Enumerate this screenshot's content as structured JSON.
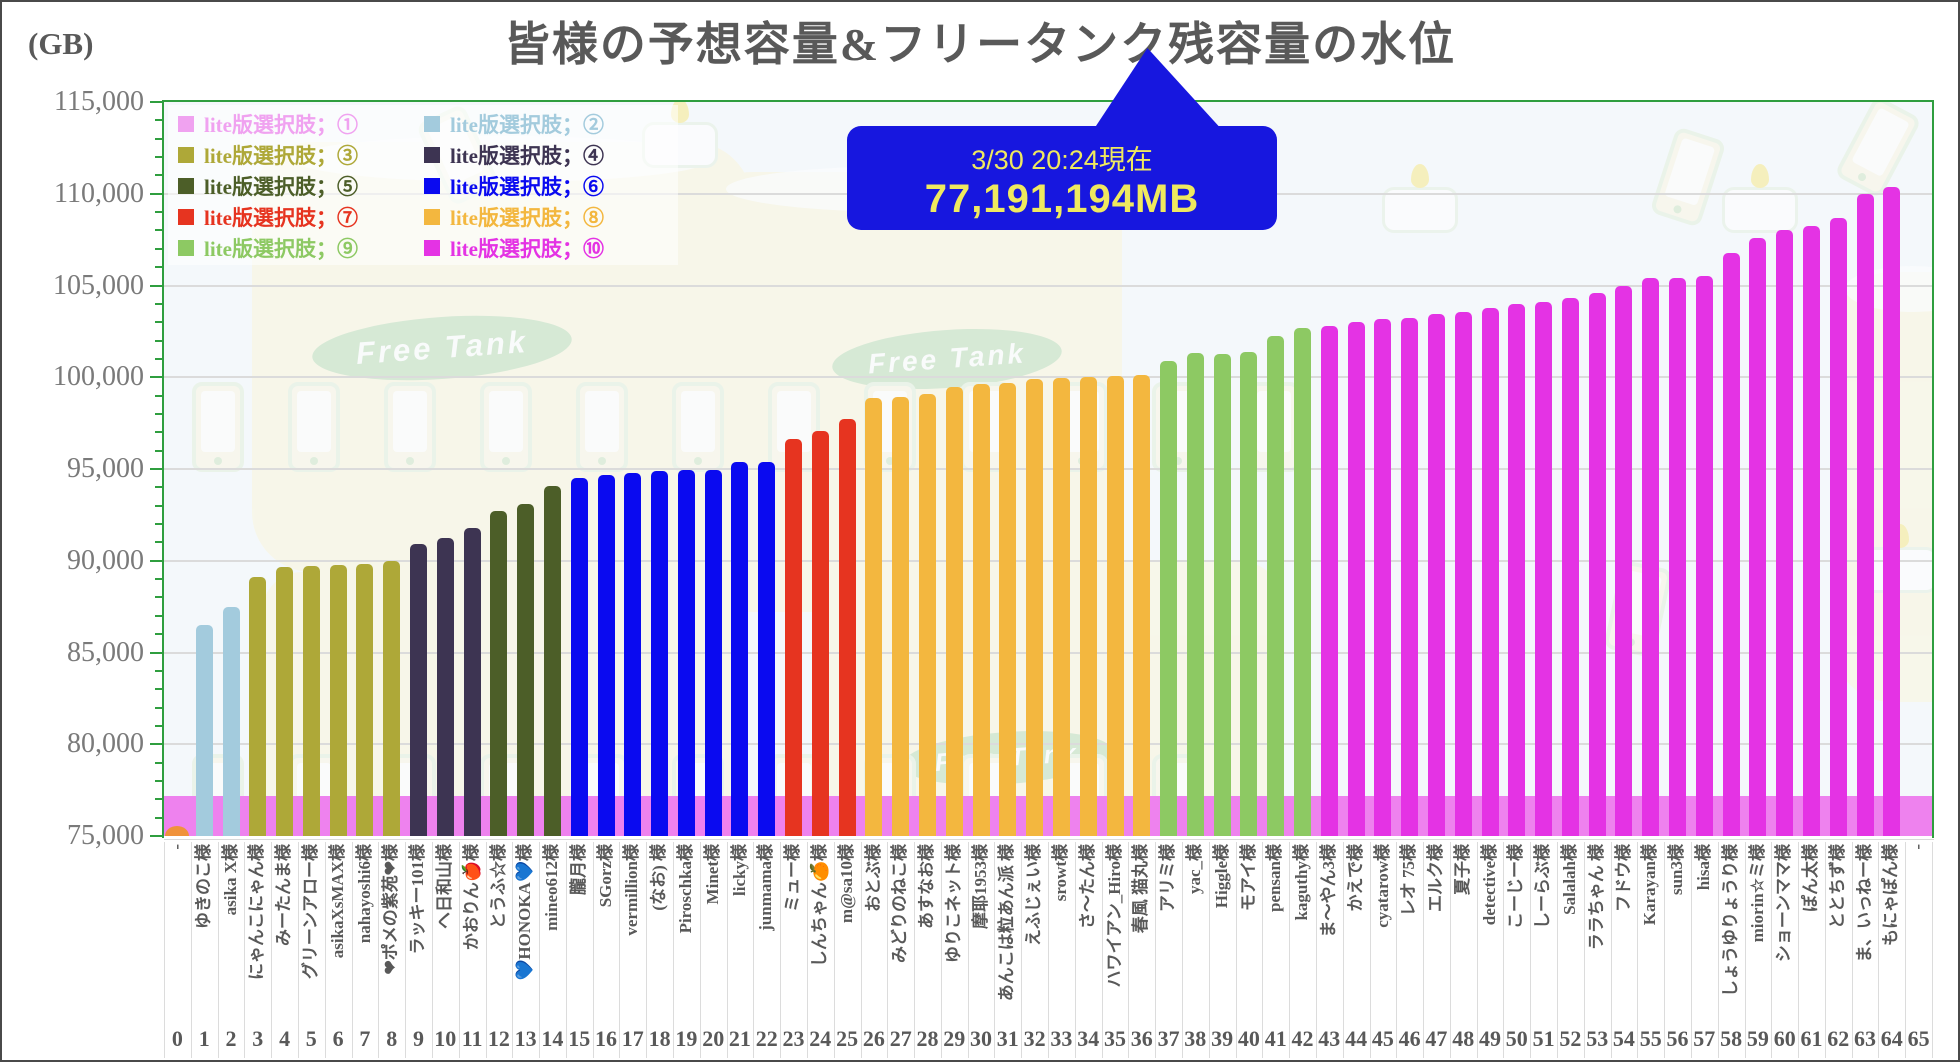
{
  "title": "皆様の予想容量&フリータンク残容量の水位",
  "y_axis_unit": "(GB)",
  "callout": {
    "line1": "3/30 20:24現在",
    "line2": "77,191,194MB"
  },
  "watermark": {
    "badge_text": "Free Tank"
  },
  "legend": {
    "entries": [
      {
        "label": "lite版選択肢；①",
        "choice": 1
      },
      {
        "label": "lite版選択肢；②",
        "choice": 2
      },
      {
        "label": "lite版選択肢；③",
        "choice": 3
      },
      {
        "label": "lite版選択肢；④",
        "choice": 4
      },
      {
        "label": "lite版選択肢；⑤",
        "choice": 5
      },
      {
        "label": "lite版選択肢；⑥",
        "choice": 6
      },
      {
        "label": "lite版選択肢；⑦",
        "choice": 7
      },
      {
        "label": "lite版選択肢；⑧",
        "choice": 8
      },
      {
        "label": "lite版選択肢；⑨",
        "choice": 9
      },
      {
        "label": "lite版選択肢；⑩",
        "choice": 10
      }
    ]
  },
  "chart_data": {
    "type": "bar",
    "title": "皆様の予想容量&フリータンク残容量の水位",
    "ylabel": "(GB)",
    "ylim": [
      75000,
      115000
    ],
    "y_major_step": 5000,
    "y_minor_step": 1000,
    "grid": true,
    "legend_position": "top-left",
    "series_colors": {
      "1": "#F0A2F0",
      "2": "#A3CBDD",
      "3": "#AEA838",
      "4": "#3D3452",
      "5": "#4C5E28",
      "6": "#0A0AF0",
      "7": "#E63420",
      "8": "#F3B73F",
      "9": "#8DC963",
      "10": "#E433E4"
    },
    "free_tank_level": {
      "as_of": "3/30 20:24現在",
      "label_mb": "77,191,194MB",
      "value_gb": 77191,
      "color": "#EE82EE"
    },
    "start_marker": {
      "slot": 0,
      "value_gb": 75300,
      "color": "#F0923B"
    },
    "slots": [
      {
        "n": 0,
        "label": "-",
        "value": null,
        "choice": null
      },
      {
        "n": 1,
        "label": "ゆきのこ様",
        "value": 86500,
        "choice": 2
      },
      {
        "n": 2,
        "label": "asika X様",
        "value": 87500,
        "choice": 2
      },
      {
        "n": 3,
        "label": "にゃんこにゃん様",
        "value": 89100,
        "choice": 3
      },
      {
        "n": 4,
        "label": "みーたんま様",
        "value": 89650,
        "choice": 3
      },
      {
        "n": 5,
        "label": "グリーンアロー様",
        "value": 89700,
        "choice": 3
      },
      {
        "n": 6,
        "label": "asikaXsMAX様",
        "value": 89750,
        "choice": 3
      },
      {
        "n": 7,
        "label": "nahayoshi6様",
        "value": 89850,
        "choice": 3
      },
      {
        "n": 8,
        "label": "❤ポメの紫苑❤様",
        "value": 90000,
        "choice": 3
      },
      {
        "n": 9,
        "label": "ラッキー101様",
        "value": 90900,
        "choice": 4
      },
      {
        "n": 10,
        "label": "ヘ日和山様",
        "value": 91250,
        "choice": 4
      },
      {
        "n": 11,
        "label": "かおりん🍎様",
        "value": 91800,
        "choice": 4
      },
      {
        "n": 12,
        "label": "とうふ☆様",
        "value": 92700,
        "choice": 5
      },
      {
        "n": 13,
        "label": "💙HONOKA💙様",
        "value": 93100,
        "choice": 5
      },
      {
        "n": 14,
        "label": "mineo612様",
        "value": 94100,
        "choice": 5
      },
      {
        "n": 15,
        "label": "朧月様",
        "value": 94500,
        "choice": 6
      },
      {
        "n": 16,
        "label": "SGorz様",
        "value": 94700,
        "choice": 6
      },
      {
        "n": 17,
        "label": "vermillion様",
        "value": 94800,
        "choice": 6
      },
      {
        "n": 18,
        "label": "(なお) 様",
        "value": 94900,
        "choice": 6
      },
      {
        "n": 19,
        "label": "Piroschka様",
        "value": 94950,
        "choice": 6
      },
      {
        "n": 20,
        "label": "Minet様",
        "value": 94950,
        "choice": 6
      },
      {
        "n": 21,
        "label": "licky様",
        "value": 95400,
        "choice": 6
      },
      {
        "n": 22,
        "label": "junmama様",
        "value": 95400,
        "choice": 6
      },
      {
        "n": 23,
        "label": "ミュー様",
        "value": 96650,
        "choice": 7
      },
      {
        "n": 24,
        "label": "しんちゃん🍊様",
        "value": 97100,
        "choice": 7
      },
      {
        "n": 25,
        "label": "m@sa10様",
        "value": 97750,
        "choice": 7
      },
      {
        "n": 26,
        "label": "おとぶ様",
        "value": 98850,
        "choice": 8
      },
      {
        "n": 27,
        "label": "みどりのねこ様",
        "value": 98900,
        "choice": 8
      },
      {
        "n": 28,
        "label": "あすなお様",
        "value": 99100,
        "choice": 8
      },
      {
        "n": 29,
        "label": "ゆりこネット様",
        "value": 99450,
        "choice": 8
      },
      {
        "n": 30,
        "label": "摩耶1953様",
        "value": 99650,
        "choice": 8
      },
      {
        "n": 31,
        "label": "あんこは粒あん派 様",
        "value": 99700,
        "choice": 8
      },
      {
        "n": 32,
        "label": "えふじぇい様",
        "value": 99900,
        "choice": 8
      },
      {
        "n": 33,
        "label": "srowt様",
        "value": 99950,
        "choice": 8
      },
      {
        "n": 34,
        "label": "さ～たん様",
        "value": 100000,
        "choice": 8
      },
      {
        "n": 35,
        "label": "ハワイアン_Hiro様",
        "value": 100050,
        "choice": 8
      },
      {
        "n": 36,
        "label": "春風 猫丸様",
        "value": 100100,
        "choice": 8
      },
      {
        "n": 37,
        "label": "アリミ様",
        "value": 100900,
        "choice": 9
      },
      {
        "n": 38,
        "label": "yac_様",
        "value": 101300,
        "choice": 9
      },
      {
        "n": 39,
        "label": "Higgle様",
        "value": 101250,
        "choice": 9
      },
      {
        "n": 40,
        "label": "モアイ様",
        "value": 101400,
        "choice": 9
      },
      {
        "n": 41,
        "label": "pensan様",
        "value": 102250,
        "choice": 9
      },
      {
        "n": 42,
        "label": "kaguthy様",
        "value": 102700,
        "choice": 9
      },
      {
        "n": 43,
        "label": "ま～やん3様",
        "value": 102800,
        "choice": 10
      },
      {
        "n": 44,
        "label": "かえで様",
        "value": 103000,
        "choice": 10
      },
      {
        "n": 45,
        "label": "cyatarow様",
        "value": 103150,
        "choice": 10
      },
      {
        "n": 46,
        "label": "レオ 75様",
        "value": 103250,
        "choice": 10
      },
      {
        "n": 47,
        "label": "エルク様",
        "value": 103450,
        "choice": 10
      },
      {
        "n": 48,
        "label": "夏子様",
        "value": 103550,
        "choice": 10
      },
      {
        "n": 49,
        "label": "detective様",
        "value": 103800,
        "choice": 10
      },
      {
        "n": 50,
        "label": "こーじー様",
        "value": 104000,
        "choice": 10
      },
      {
        "n": 51,
        "label": "しーらぶ様",
        "value": 104100,
        "choice": 10
      },
      {
        "n": 52,
        "label": "Salalah様",
        "value": 104300,
        "choice": 10
      },
      {
        "n": 53,
        "label": "ララちゃん 様",
        "value": 104600,
        "choice": 10
      },
      {
        "n": 54,
        "label": "フドウ様",
        "value": 105000,
        "choice": 10
      },
      {
        "n": 55,
        "label": "Karayan様",
        "value": 105400,
        "choice": 10
      },
      {
        "n": 56,
        "label": "sun3様",
        "value": 105400,
        "choice": 10
      },
      {
        "n": 57,
        "label": "hisa様",
        "value": 105500,
        "choice": 10
      },
      {
        "n": 58,
        "label": "しょうゆりょうり様",
        "value": 106750,
        "choice": 10
      },
      {
        "n": 59,
        "label": "miorin☆ミ様",
        "value": 107600,
        "choice": 10
      },
      {
        "n": 60,
        "label": "ショーンママ様",
        "value": 108050,
        "choice": 10
      },
      {
        "n": 61,
        "label": "ぽん太様",
        "value": 108250,
        "choice": 10
      },
      {
        "n": 62,
        "label": "ととちず様",
        "value": 108700,
        "choice": 10
      },
      {
        "n": 63,
        "label": "ま、いっねー様",
        "value": 110000,
        "choice": 10
      },
      {
        "n": 64,
        "label": "もにゃぽん様",
        "value": 110350,
        "choice": 10
      },
      {
        "n": 65,
        "label": "-",
        "value": null,
        "choice": null
      }
    ]
  }
}
